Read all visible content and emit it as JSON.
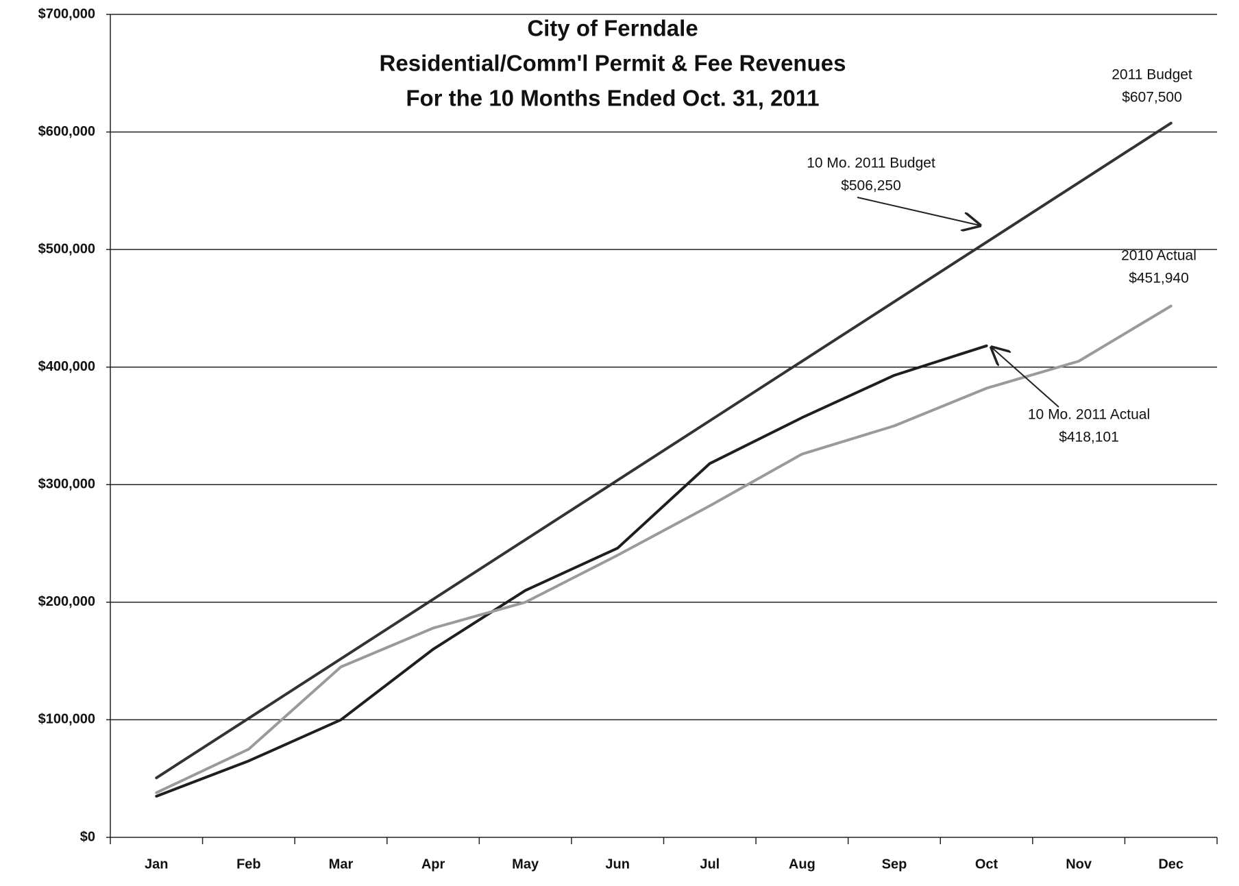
{
  "chart_data": {
    "type": "line",
    "title": [
      "City of Ferndale",
      "Residential/Comm'l Permit & Fee Revenues",
      "For the 10 Months Ended Oct. 31, 2011"
    ],
    "categories": [
      "Jan",
      "Feb",
      "Mar",
      "Apr",
      "May",
      "Jun",
      "Jul",
      "Aug",
      "Sep",
      "Oct",
      "Nov",
      "Dec"
    ],
    "series": [
      {
        "name": "2011 Budget",
        "color": "#333333",
        "width": 4,
        "values": [
          50625,
          101250,
          151875,
          202500,
          253125,
          303750,
          354375,
          405000,
          455625,
          506250,
          556875,
          607500
        ]
      },
      {
        "name": "2011 Actual",
        "color": "#1e1e1e",
        "width": 4,
        "values": [
          35000,
          65000,
          100000,
          160000,
          210000,
          246000,
          318000,
          357000,
          393000,
          418101,
          null,
          null
        ]
      },
      {
        "name": "2010 Actual",
        "color": "#9a9a9a",
        "width": 4,
        "values": [
          38000,
          75000,
          145000,
          178000,
          200000,
          240000,
          282000,
          326000,
          350000,
          382000,
          405000,
          451940
        ]
      }
    ],
    "annotations": [
      {
        "text": [
          "2011 Budget",
          "$607,500"
        ]
      },
      {
        "text": [
          "10 Mo. 2011 Budget",
          "$506,250"
        ]
      },
      {
        "text": [
          "2010 Actual",
          "$451,940"
        ]
      },
      {
        "text": [
          "10 Mo. 2011 Actual",
          "$418,101"
        ]
      }
    ],
    "ylim": [
      0,
      700000
    ],
    "yticks": [
      {
        "value": 0,
        "label": "$0"
      },
      {
        "value": 100000,
        "label": "$100,000"
      },
      {
        "value": 200000,
        "label": "$200,000"
      },
      {
        "value": 300000,
        "label": "$300,000"
      },
      {
        "value": 400000,
        "label": "$400,000"
      },
      {
        "value": 500000,
        "label": "$500,000"
      },
      {
        "value": 600000,
        "label": "$600,000"
      },
      {
        "value": 700000,
        "label": "$700,000"
      }
    ],
    "grid": true
  }
}
